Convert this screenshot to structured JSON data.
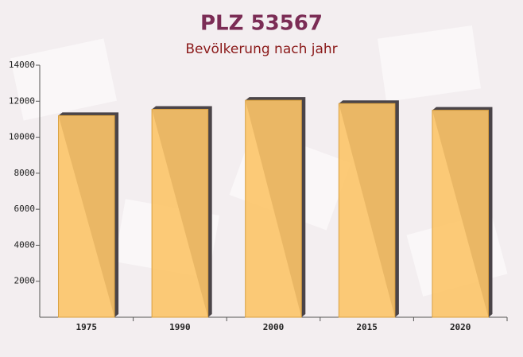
{
  "chart_data": {
    "type": "bar",
    "title": "PLZ 53567",
    "subtitle": "Bevölkerung nach jahr",
    "categories": [
      "1975",
      "1990",
      "2000",
      "2015",
      "2020"
    ],
    "values": [
      11200,
      11550,
      12050,
      11870,
      11500
    ],
    "color": "#fcc468",
    "ylim": [
      0,
      14000
    ],
    "yticks": [
      2000,
      4000,
      6000,
      8000,
      10000,
      12000,
      14000
    ],
    "grid": false
  }
}
